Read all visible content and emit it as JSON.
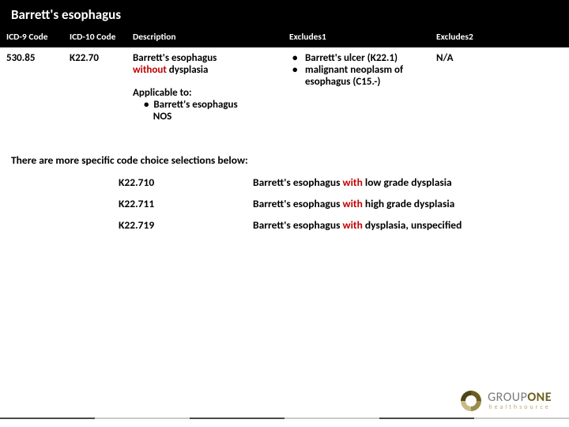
{
  "colors": {
    "black": "#000000",
    "white": "#ffffff",
    "red": "#c00000",
    "olive": "#6b5e1e",
    "tan": "#b8a873",
    "grayText": "#7a7a7a",
    "divider_dk": "#4a4a4a",
    "divider_lt": "#c9c9c9"
  },
  "title": "Barrett's esophagus",
  "headers": {
    "icd9": "ICD-9 Code",
    "icd10": "ICD-10 Code",
    "desc": "Description",
    "ex1": "Excludes1",
    "ex2": "Excludes2"
  },
  "row": {
    "icd9": "530.85",
    "icd10": "K22.70",
    "desc_main": "Barrett's esophagus",
    "desc_without": "without",
    "desc_tail": " dysplasia",
    "applicable_label": "Applicable to:",
    "applicable_item_l1": "Barrett's esophagus",
    "applicable_item_l2": "NOS",
    "ex1_items": [
      "Barrett's ulcer (K22.1)",
      "malignant neoplasm of esophagus (C15.-)"
    ],
    "ex2": "N/A"
  },
  "more_note": "There are more specific code choice selections below:",
  "specific": [
    {
      "code": "K22.710",
      "pre": "Barrett's esophagus ",
      "with": "with",
      "post": " low grade dysplasia"
    },
    {
      "code": "K22.711",
      "pre": "Barrett's esophagus ",
      "with": "with",
      "post": " high grade dysplasia"
    },
    {
      "code": "K22.719",
      "pre": "Barrett's esophagus ",
      "with": "with",
      "post": " dysplasia, unspecified"
    }
  ],
  "logo": {
    "group": "GROUP",
    "one": "ONE",
    "hs": "healthsource"
  }
}
